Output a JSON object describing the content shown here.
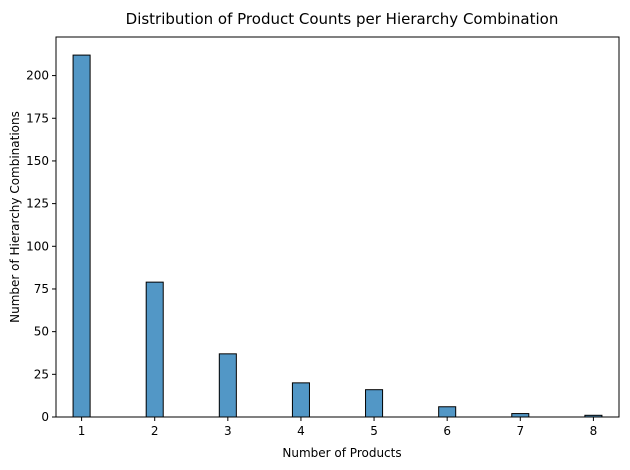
{
  "chart_data": {
    "type": "bar",
    "title": "Distribution of Product Counts per Hierarchy Combination",
    "xlabel": "Number of Products",
    "ylabel": "Number of Hierarchy Combinations",
    "x_ticks": [
      "1",
      "2",
      "3",
      "4",
      "5",
      "6",
      "7",
      "8"
    ],
    "y_ticks": [
      "0",
      "25",
      "50",
      "75",
      "100",
      "125",
      "150",
      "175",
      "200"
    ],
    "xlim": [
      0.65,
      8.35
    ],
    "ylim": [
      0,
      222.6
    ],
    "bar_width": 0.233,
    "grid": false,
    "series": [
      {
        "x": [
          1,
          2,
          3,
          4,
          5,
          6,
          7,
          8
        ],
        "values": [
          212,
          79,
          37,
          20,
          16,
          6,
          2,
          1
        ],
        "color": "#5297c6"
      }
    ]
  }
}
